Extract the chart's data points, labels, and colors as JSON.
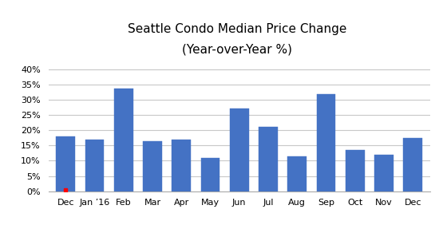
{
  "title_line1": "Seattle Condo Median Price Change",
  "title_line2": "(Year-over-Year %)",
  "categories": [
    "Dec",
    "Jan ’16",
    "Feb",
    "Mar",
    "Apr",
    "May",
    "Jun",
    "Jul",
    "Aug",
    "Sep",
    "Oct",
    "Nov",
    "Dec"
  ],
  "values": [
    0.18,
    0.17,
    0.335,
    0.165,
    0.17,
    0.11,
    0.27,
    0.21,
    0.115,
    0.318,
    0.135,
    0.12,
    0.175
  ],
  "bar_color": "#4472C4",
  "bar_edge_color": "#4472C4",
  "background_color": "#FFFFFF",
  "grid_color": "#C8C8C8",
  "ylim": [
    0,
    0.42
  ],
  "yticks": [
    0.0,
    0.05,
    0.1,
    0.15,
    0.2,
    0.25,
    0.3,
    0.35,
    0.4
  ],
  "title_fontsize": 11,
  "tick_fontsize": 8,
  "red_marker_color": "#FF0000"
}
